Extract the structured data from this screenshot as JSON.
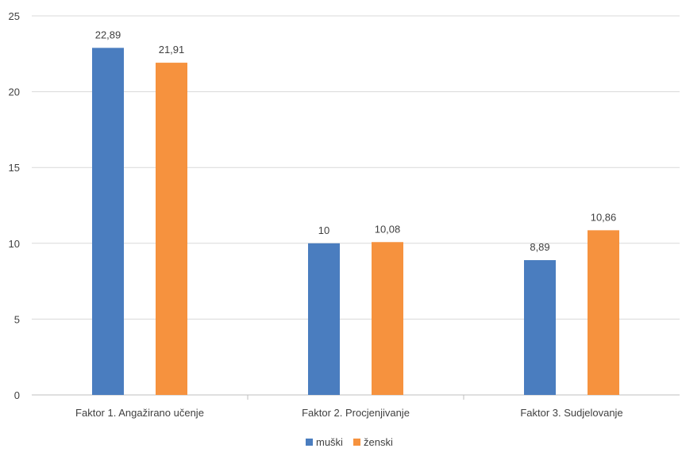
{
  "chart_data": {
    "type": "bar",
    "categories": [
      "Faktor 1. Angažirano učenje",
      "Faktor 2. Procjenjivanje",
      "Faktor 3. Sudjelovanje"
    ],
    "series": [
      {
        "name": "muški",
        "color": "#4a7dbf",
        "values": [
          22.89,
          10,
          8.89
        ],
        "labels": [
          "22,89",
          "10",
          "8,89"
        ]
      },
      {
        "name": "ženski",
        "color": "#f6923e",
        "values": [
          21.91,
          10.08,
          10.86
        ],
        "labels": [
          "21,91",
          "10,08",
          "10,86"
        ]
      }
    ],
    "yticks": [
      "0",
      "5",
      "10",
      "15",
      "20",
      "25"
    ],
    "ylim": [
      0,
      25
    ],
    "grid": true,
    "legend": "bottom-center"
  }
}
